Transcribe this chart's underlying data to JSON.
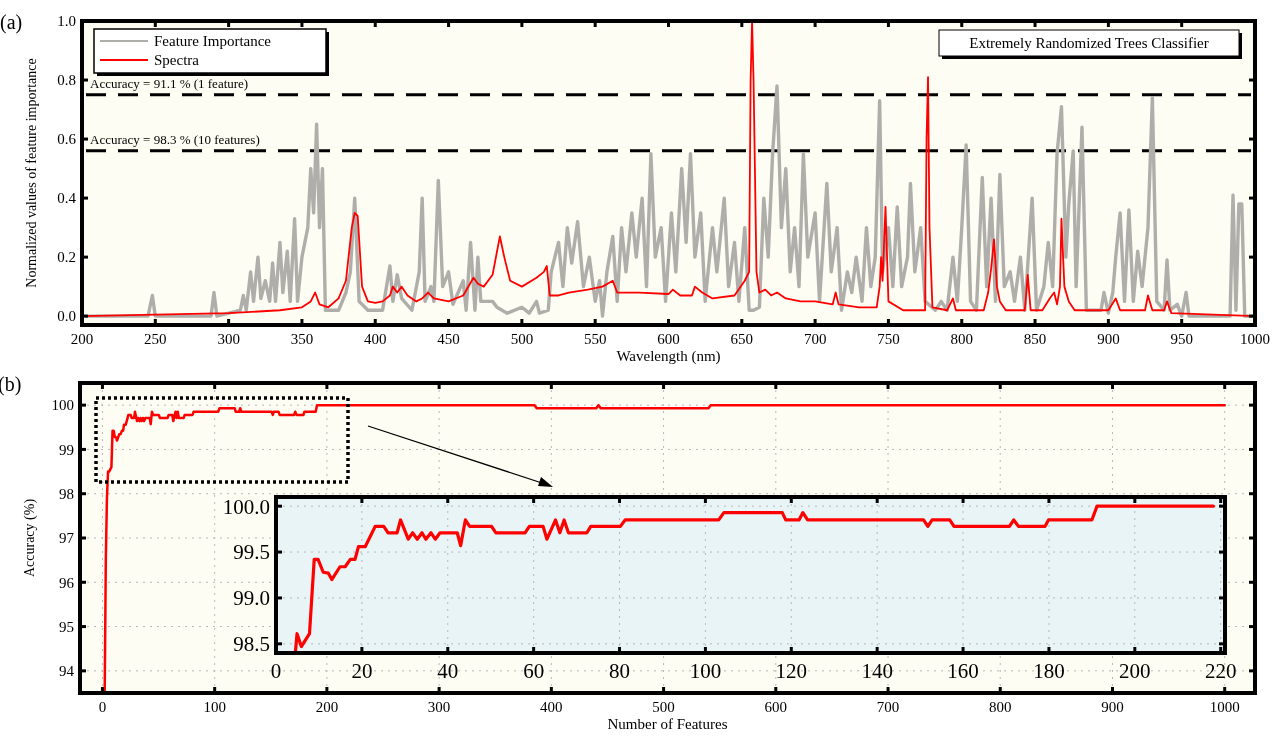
{
  "chart_data": [
    {
      "type": "line",
      "xlabel": "Wavelength (nm)",
      "ylabel": "Normalized values of feature importance",
      "xlim": [
        200,
        1000
      ],
      "ylim": [
        -0.03,
        1.0
      ],
      "xticks": [
        200,
        250,
        300,
        350,
        400,
        450,
        500,
        550,
        600,
        650,
        700,
        750,
        800,
        850,
        900,
        950,
        1000
      ],
      "yticks": [
        {
          "value": 0,
          "label": "0.0"
        },
        {
          "value": 0.2,
          "label": "0.2"
        },
        {
          "value": 0.4,
          "label": "0.4"
        },
        {
          "value": 0.6,
          "label": "0.6"
        },
        {
          "value": 0.8,
          "label": "0.8"
        },
        {
          "value": 1,
          "label": "1.0"
        }
      ],
      "legend": "top left",
      "annotations": [
        "(a)",
        "Extremely Randomized Trees Classifier",
        {
          "text": "Accuracy = 91.1 % (1 feature)",
          "x": 200,
          "y": 0.75
        },
        {
          "text": "Accuracy = 98.3 % (10 features)",
          "x": 200,
          "y": 0.56
        }
      ],
      "ref_lines": [
        {
          "axis": "y",
          "value": 0.75,
          "color": "#000000",
          "line_style": "dashed"
        },
        {
          "axis": "y",
          "value": 0.56,
          "color": "#000000",
          "line_style": "dashed"
        }
      ],
      "series": [
        {
          "name": "Feature Importance",
          "color": "#b0aeaa",
          "x": [
            200,
            245,
            248,
            250,
            288,
            290,
            292,
            300,
            308,
            310,
            312,
            315,
            317,
            320,
            322,
            325,
            328,
            330,
            332,
            335,
            337,
            340,
            342,
            345,
            347,
            350,
            352,
            354,
            356,
            358,
            360,
            362,
            364,
            366,
            375,
            380,
            383,
            386,
            389,
            395,
            405,
            410,
            412,
            415,
            418,
            425,
            430,
            432,
            434,
            438,
            440,
            443,
            446,
            450,
            453,
            460,
            462,
            465,
            468,
            470,
            472,
            480,
            483,
            490,
            500,
            505,
            510,
            512,
            518,
            520,
            525,
            528,
            531,
            534,
            538,
            542,
            546,
            550,
            553,
            555,
            558,
            562,
            565,
            568,
            571,
            575,
            578,
            582,
            585,
            588,
            591,
            595,
            598,
            602,
            605,
            609,
            612,
            615,
            618,
            622,
            625,
            630,
            633,
            638,
            641,
            645,
            648,
            652,
            655,
            658,
            662,
            665,
            668,
            671,
            674,
            677,
            680,
            683,
            686,
            689,
            692,
            695,
            700,
            703,
            708,
            711,
            715,
            718,
            722,
            725,
            728,
            732,
            735,
            738,
            741,
            744,
            746,
            750,
            753,
            756,
            759,
            763,
            765,
            768,
            772,
            775,
            782,
            786,
            790,
            794,
            797,
            800,
            803,
            806,
            810,
            814,
            817,
            820,
            823,
            826,
            829,
            833,
            836,
            840,
            843,
            848,
            851,
            856,
            859,
            862,
            865,
            868,
            871,
            873,
            876,
            878,
            882,
            885,
            895,
            897,
            900,
            903,
            905,
            908,
            911,
            914,
            917,
            920,
            923,
            927,
            930,
            933,
            938,
            940,
            942,
            947,
            950,
            953,
            955,
            983,
            985,
            987,
            989,
            991,
            993,
            1000
          ],
          "values": [
            0,
            0,
            0.07,
            0,
            0,
            0.08,
            0,
            0.01,
            0.02,
            0.07,
            0.02,
            0.15,
            0.05,
            0.2,
            0.06,
            0.12,
            0.05,
            0.18,
            0.05,
            0.25,
            0.08,
            0.22,
            0.05,
            0.33,
            0.05,
            0.2,
            0.25,
            0.3,
            0.5,
            0.35,
            0.65,
            0.3,
            0.5,
            0.02,
            0.02,
            0.08,
            0.15,
            0.4,
            0.05,
            0.02,
            0.02,
            0.17,
            0.05,
            0.14,
            0.06,
            0.02,
            0.15,
            0.4,
            0.05,
            0.1,
            0.05,
            0.46,
            0.1,
            0.15,
            0.04,
            0.12,
            0.02,
            0.25,
            0.02,
            0.2,
            0.05,
            0.05,
            0.03,
            0.01,
            0.03,
            0.01,
            0.05,
            0.01,
            0.02,
            0.15,
            0.25,
            0.1,
            0.3,
            0.18,
            0.32,
            0.1,
            0.2,
            0.05,
            0.12,
            0,
            0.15,
            0.27,
            0.05,
            0.3,
            0.15,
            0.35,
            0.2,
            0.4,
            0.1,
            0.55,
            0.2,
            0.3,
            0.05,
            0.35,
            0.15,
            0.5,
            0.25,
            0.55,
            0.2,
            0.35,
            0.05,
            0.3,
            0.15,
            0.4,
            0.1,
            0.25,
            0.05,
            0.3,
            0.02,
            0.02,
            0.03,
            0.4,
            0.2,
            0.55,
            0.78,
            0.3,
            0.5,
            0.15,
            0.3,
            0.1,
            0.55,
            0.2,
            0.35,
            0.05,
            0.45,
            0.15,
            0.3,
            0.02,
            0.15,
            0.08,
            0.2,
            0.05,
            0.3,
            0.1,
            0.2,
            0.73,
            0.15,
            0.3,
            0.1,
            0.37,
            0.1,
            0.2,
            0.45,
            0.15,
            0.3,
            0.05,
            0.02,
            0.05,
            0.02,
            0.2,
            0.05,
            0.3,
            0.58,
            0.05,
            0.02,
            0.47,
            0.1,
            0.4,
            0.05,
            0.48,
            0.1,
            0.15,
            0.05,
            0.2,
            0.02,
            0.4,
            0.02,
            0.1,
            0.25,
            0.1,
            0.55,
            0.71,
            0.2,
            0.38,
            0.56,
            0.1,
            0.64,
            0.02,
            0.02,
            0.08,
            0.01,
            0.08,
            0.2,
            0.35,
            0.05,
            0.36,
            0.05,
            0.22,
            0.1,
            0.3,
            0.74,
            0.05,
            0.02,
            0.19,
            0.02,
            0.04,
            0,
            0.08,
            0,
            0,
            0.41,
            0.02,
            0.38,
            0.38,
            0,
            0
          ]
        },
        {
          "name": "Spectra",
          "color": "#ff0000",
          "x": [
            200,
            250,
            300,
            335,
            350,
            356,
            359,
            362,
            368,
            375,
            380,
            384,
            386,
            388,
            391,
            395,
            400,
            405,
            410,
            412,
            415,
            418,
            422,
            428,
            432,
            436,
            440,
            450,
            460,
            467,
            470,
            474,
            480,
            485,
            488,
            492,
            500,
            510,
            515,
            517,
            519,
            525,
            532,
            545,
            555,
            562,
            565,
            580,
            600,
            603,
            608,
            616,
            618,
            623,
            630,
            645,
            652,
            655,
            656,
            657,
            658,
            660,
            662,
            666,
            670,
            674,
            680,
            690,
            700,
            712,
            714,
            716,
            730,
            742,
            744,
            745,
            746,
            748,
            750,
            760,
            775,
            776,
            777,
            778,
            780,
            790,
            794,
            796,
            815,
            818,
            820,
            822,
            824,
            826,
            830,
            843,
            845,
            847,
            855,
            860,
            863,
            865,
            867,
            868,
            870,
            873,
            877,
            900,
            905,
            908,
            925,
            927,
            930,
            938,
            940,
            943,
            1000
          ],
          "values": [
            0,
            0.005,
            0.01,
            0.02,
            0.03,
            0.05,
            0.08,
            0.04,
            0.03,
            0.06,
            0.12,
            0.3,
            0.35,
            0.34,
            0.1,
            0.05,
            0.045,
            0.05,
            0.07,
            0.1,
            0.08,
            0.1,
            0.07,
            0.05,
            0.06,
            0.08,
            0.06,
            0.05,
            0.07,
            0.13,
            0.11,
            0.1,
            0.14,
            0.27,
            0.2,
            0.12,
            0.1,
            0.13,
            0.15,
            0.17,
            0.07,
            0.07,
            0.08,
            0.09,
            0.1,
            0.12,
            0.08,
            0.08,
            0.075,
            0.09,
            0.07,
            0.07,
            0.1,
            0.08,
            0.06,
            0.07,
            0.12,
            0.15,
            0.8,
            1.0,
            0.8,
            0.15,
            0.08,
            0.09,
            0.07,
            0.08,
            0.06,
            0.05,
            0.05,
            0.04,
            0.08,
            0.04,
            0.03,
            0.03,
            0.1,
            0.2,
            0.12,
            0.37,
            0.05,
            0.02,
            0.02,
            0.6,
            0.81,
            0.3,
            0.03,
            0.02,
            0.06,
            0.02,
            0.02,
            0.08,
            0.16,
            0.26,
            0.1,
            0.05,
            0.02,
            0.02,
            0.14,
            0.02,
            0.02,
            0.06,
            0.08,
            0.04,
            0.1,
            0.33,
            0.1,
            0.05,
            0.02,
            0.02,
            0.06,
            0.02,
            0.02,
            0.07,
            0.02,
            0.02,
            0.05,
            0.01,
            0
          ]
        }
      ]
    },
    {
      "type": "line",
      "xlabel": "Number of Features",
      "ylabel": "Accuracy (%)",
      "xlim": [
        -20,
        1027
      ],
      "ylim": [
        93.5,
        100.5
      ],
      "xticks": [
        0,
        100,
        200,
        300,
        400,
        500,
        600,
        700,
        800,
        900,
        1000
      ],
      "yticks": [
        94,
        95,
        96,
        97,
        98,
        99,
        100
      ],
      "grid": true,
      "annotations": [
        "(b)"
      ],
      "series": [
        {
          "color": "#ff0000",
          "x": [
            2,
            3,
            4,
            5,
            6,
            8,
            9,
            10,
            11,
            12.2,
            13,
            14.9,
            16.1,
            17.3,
            18.4,
            19.2,
            20.8,
            23.1,
            25.1,
            26.1,
            28.2,
            29,
            30.8,
            31.8,
            32.9,
            34,
            34.9,
            36.1,
            37.1,
            38.2,
            42.2,
            43,
            44.1,
            45.1,
            50.2,
            51.2,
            58,
            59,
            62.2,
            63.1,
            65.1,
            66.1,
            67.1,
            68.1,
            72.4,
            73.3,
            80.2,
            81.3,
            103.1,
            104.3,
            117.9,
            118.7,
            121.8,
            122.7,
            123.8,
            150.8,
            151.8,
            152.8,
            156.9,
            157.9,
            170.8,
            171.8,
            172.9,
            179.1,
            179.9,
            190,
            191.2,
            385,
            387,
            440,
            442,
            444,
            540,
            542,
            1000
          ],
          "values": [
            93.5,
            96.5,
            97.9,
            98.5,
            98.5,
            98.6,
            99.42,
            99.42,
            99.28,
            99.27,
            99.2,
            99.34,
            99.34,
            99.42,
            99.42,
            99.56,
            99.56,
            99.78,
            99.78,
            99.71,
            99.71,
            99.85,
            99.64,
            99.71,
            99.64,
            99.71,
            99.64,
            99.71,
            99.64,
            99.71,
            99.71,
            99.57,
            99.85,
            99.78,
            99.78,
            99.71,
            99.71,
            99.78,
            99.78,
            99.64,
            99.85,
            99.71,
            99.85,
            99.71,
            99.71,
            99.78,
            99.78,
            99.85,
            99.85,
            99.93,
            99.93,
            99.85,
            99.85,
            99.93,
            99.85,
            99.85,
            99.78,
            99.85,
            99.85,
            99.78,
            99.78,
            99.85,
            99.78,
            99.78,
            99.85,
            99.85,
            100,
            100,
            99.93,
            99.93,
            100,
            99.93,
            99.93,
            100,
            100
          ]
        }
      ]
    },
    {
      "type": "line",
      "xlim": [
        0,
        221
      ],
      "ylim": [
        98.4,
        100.1
      ],
      "xticks": [
        0,
        20,
        40,
        60,
        80,
        100,
        120,
        140,
        160,
        180,
        200,
        220
      ],
      "yticks": [
        98.5,
        {
          "value": 99,
          "label": "99.0"
        },
        99.5,
        {
          "value": 100,
          "label": "100.0"
        }
      ],
      "grid": true,
      "series": [
        {
          "color": "#ff0000",
          "x": [
            4.5,
            4.9,
            5.9,
            7.8,
            8.9,
            9.8,
            11,
            12.2,
            13,
            14.9,
            16.1,
            17.3,
            18.4,
            19.2,
            20.8,
            23.1,
            25.1,
            26.1,
            28.2,
            29,
            30.8,
            31.8,
            32.9,
            34,
            34.9,
            36.1,
            37.1,
            38.2,
            42.2,
            43,
            44.1,
            45.1,
            50.2,
            51.2,
            58,
            59,
            62.2,
            63.1,
            65.1,
            66.1,
            67.1,
            68.1,
            72.4,
            73.3,
            80.2,
            81.3,
            103.1,
            104.3,
            117.9,
            118.7,
            121.8,
            122.7,
            123.8,
            150.8,
            151.8,
            152.8,
            156.9,
            157.9,
            170.8,
            171.8,
            172.9,
            179.1,
            179.9,
            190,
            191.2,
            218.3
          ],
          "values": [
            98.4,
            98.61,
            98.47,
            98.61,
            99.42,
            99.42,
            99.28,
            99.27,
            99.2,
            99.34,
            99.34,
            99.42,
            99.42,
            99.56,
            99.56,
            99.78,
            99.78,
            99.71,
            99.71,
            99.85,
            99.64,
            99.71,
            99.64,
            99.71,
            99.64,
            99.71,
            99.64,
            99.71,
            99.71,
            99.57,
            99.85,
            99.78,
            99.78,
            99.71,
            99.71,
            99.78,
            99.78,
            99.64,
            99.85,
            99.71,
            99.85,
            99.71,
            99.71,
            99.78,
            99.78,
            99.85,
            99.85,
            99.93,
            99.93,
            99.85,
            99.85,
            99.93,
            99.85,
            99.85,
            99.78,
            99.85,
            99.85,
            99.78,
            99.78,
            99.85,
            99.78,
            99.78,
            99.85,
            99.85,
            100,
            100
          ]
        }
      ]
    }
  ]
}
